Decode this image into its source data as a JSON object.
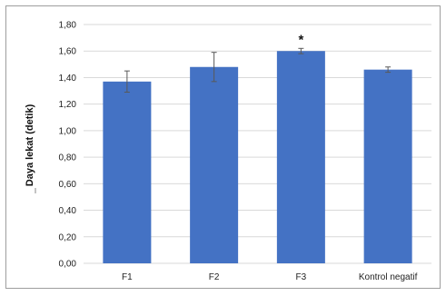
{
  "chart_data": {
    "type": "bar",
    "categories": [
      "F1",
      "F2",
      "F3",
      "Kontrol negatif"
    ],
    "values": [
      1.37,
      1.48,
      1.6,
      1.46
    ],
    "error": [
      0.08,
      0.11,
      0.02,
      0.02
    ],
    "annotations": [
      {
        "category": "F3",
        "text": "*"
      }
    ],
    "title": "",
    "xlabel": "",
    "ylabel": "Daya lekat (detik)",
    "ylim": [
      0,
      1.8
    ],
    "yticks": [
      "0,00",
      "0,20",
      "0,40",
      "0,60",
      "0,80",
      "1,00",
      "1,20",
      "1,40",
      "1,60",
      "1,80"
    ],
    "grid": true,
    "legend": "none",
    "bar_color": "#4472C4",
    "grid_color": "#d9d9d9",
    "error_color": "#595959"
  }
}
